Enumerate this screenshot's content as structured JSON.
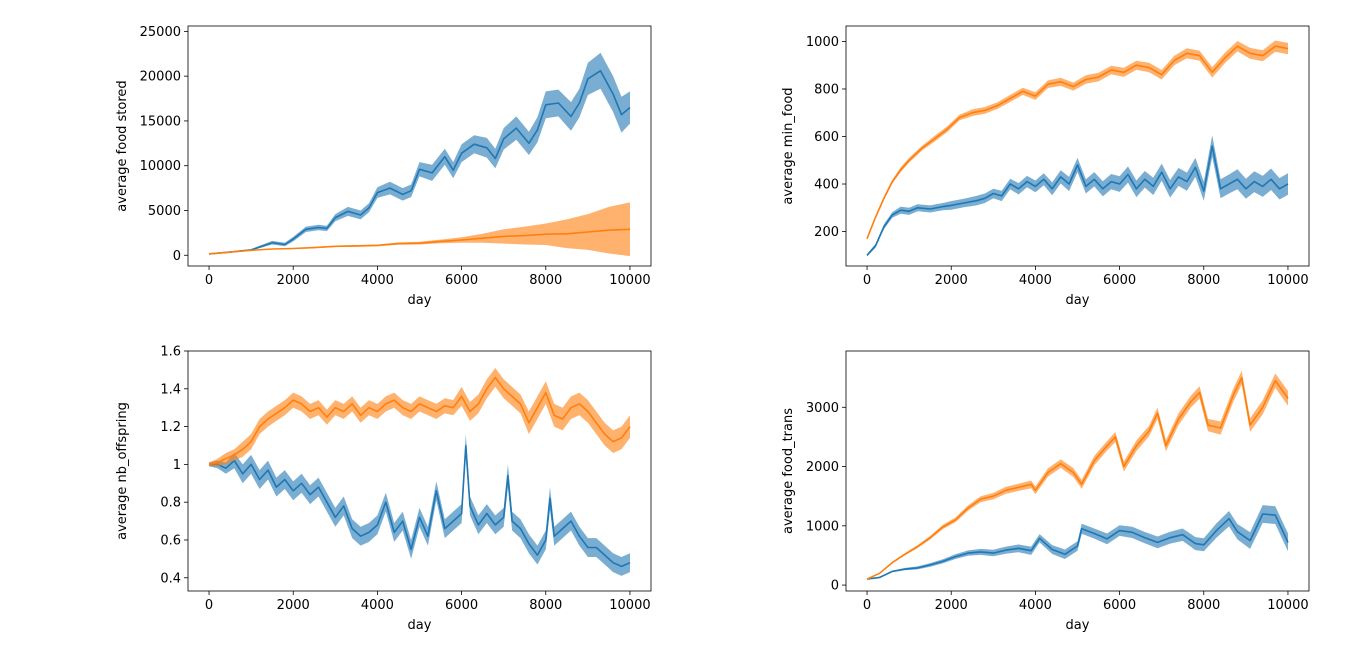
{
  "colors": {
    "series_a": "#1f77b4",
    "series_b": "#ff7f0e"
  },
  "chart_data": [
    {
      "type": "line",
      "title": "",
      "xlabel": "day",
      "ylabel": "average food stored",
      "xlim": [
        -500,
        10500
      ],
      "ylim": [
        -1200,
        25600
      ],
      "xticks": [
        0,
        2000,
        4000,
        6000,
        8000,
        10000
      ],
      "yticks": [
        0,
        5000,
        10000,
        15000,
        20000,
        25000
      ],
      "series": [
        {
          "color": "#1f77b4",
          "x": [
            0,
            500,
            1000,
            1500,
            1800,
            2000,
            2300,
            2600,
            2800,
            3000,
            3300,
            3600,
            3800,
            4000,
            4300,
            4600,
            4800,
            5000,
            5300,
            5600,
            5800,
            6000,
            6300,
            6600,
            6800,
            7000,
            7300,
            7600,
            7800,
            8000,
            8300,
            8600,
            8800,
            9000,
            9300,
            9600,
            9800,
            10000
          ],
          "y": [
            150,
            350,
            600,
            1400,
            1200,
            1800,
            2900,
            3100,
            3000,
            4200,
            4900,
            4500,
            5300,
            7000,
            7500,
            6800,
            7200,
            9600,
            9200,
            11000,
            9500,
            11400,
            12400,
            12000,
            10800,
            13000,
            14200,
            12500,
            14000,
            16800,
            17000,
            15500,
            17000,
            19700,
            20600,
            18000,
            15700,
            16500
          ],
          "band": [
            50,
            80,
            100,
            200,
            200,
            250,
            300,
            300,
            300,
            400,
            500,
            500,
            500,
            600,
            700,
            700,
            700,
            800,
            900,
            900,
            900,
            1000,
            1000,
            1100,
            1100,
            1200,
            1300,
            1300,
            1400,
            1500,
            1500,
            1600,
            1600,
            1800,
            2000,
            2000,
            2000,
            1800
          ]
        },
        {
          "color": "#ff7f0e",
          "x": [
            0,
            500,
            1000,
            1500,
            2000,
            2500,
            3000,
            3500,
            4000,
            4500,
            5000,
            5500,
            6000,
            6500,
            7000,
            7500,
            8000,
            8500,
            9000,
            9500,
            10000
          ],
          "y": [
            150,
            350,
            550,
            700,
            750,
            850,
            1000,
            1050,
            1100,
            1300,
            1350,
            1550,
            1700,
            1900,
            2100,
            2200,
            2350,
            2400,
            2600,
            2800,
            2900
          ],
          "band": [
            20,
            30,
            40,
            50,
            60,
            70,
            80,
            90,
            100,
            120,
            150,
            200,
            300,
            500,
            800,
            1000,
            1200,
            1600,
            2000,
            2600,
            3000
          ]
        }
      ]
    },
    {
      "type": "line",
      "title": "",
      "xlabel": "day",
      "ylabel": "average min_food",
      "xlim": [
        -500,
        10500
      ],
      "ylim": [
        55,
        1065
      ],
      "xticks": [
        0,
        2000,
        4000,
        6000,
        8000,
        10000
      ],
      "yticks": [
        200,
        400,
        600,
        800,
        1000
      ],
      "series": [
        {
          "color": "#1f77b4",
          "x": [
            0,
            200,
            400,
            600,
            800,
            1000,
            1200,
            1500,
            1800,
            2000,
            2300,
            2600,
            2800,
            3000,
            3200,
            3400,
            3600,
            3800,
            4000,
            4200,
            4400,
            4600,
            4800,
            5000,
            5200,
            5400,
            5600,
            5800,
            6000,
            6200,
            6400,
            6600,
            6800,
            7000,
            7200,
            7400,
            7600,
            7800,
            8000,
            8200,
            8400,
            8600,
            8800,
            9000,
            9200,
            9400,
            9600,
            9800,
            10000
          ],
          "y": [
            100,
            140,
            220,
            270,
            290,
            285,
            300,
            295,
            305,
            310,
            320,
            330,
            340,
            360,
            350,
            400,
            380,
            410,
            390,
            420,
            380,
            430,
            400,
            480,
            390,
            420,
            380,
            410,
            400,
            440,
            380,
            420,
            390,
            450,
            380,
            430,
            410,
            470,
            370,
            560,
            380,
            400,
            420,
            380,
            410,
            390,
            420,
            380,
            400
          ],
          "band": [
            5,
            8,
            10,
            12,
            15,
            15,
            15,
            15,
            15,
            18,
            18,
            20,
            20,
            20,
            22,
            22,
            24,
            24,
            25,
            25,
            27,
            28,
            30,
            30,
            30,
            30,
            32,
            32,
            33,
            34,
            35,
            35,
            36,
            36,
            37,
            38,
            38,
            40,
            40,
            45,
            40,
            40,
            42,
            42,
            44,
            44,
            45,
            45,
            45
          ]
        },
        {
          "color": "#ff7f0e",
          "x": [
            0,
            200,
            400,
            600,
            800,
            1000,
            1300,
            1600,
            1900,
            2200,
            2500,
            2800,
            3100,
            3400,
            3700,
            4000,
            4300,
            4600,
            4900,
            5200,
            5500,
            5800,
            6100,
            6400,
            6700,
            7000,
            7300,
            7600,
            7900,
            8200,
            8500,
            8800,
            9100,
            9400,
            9700,
            10000
          ],
          "y": [
            170,
            260,
            340,
            410,
            460,
            500,
            550,
            590,
            630,
            680,
            700,
            710,
            730,
            760,
            790,
            770,
            820,
            830,
            810,
            840,
            850,
            880,
            870,
            900,
            890,
            860,
            920,
            950,
            940,
            870,
            930,
            980,
            950,
            940,
            980,
            970
          ],
          "band": [
            5,
            6,
            8,
            8,
            10,
            10,
            10,
            12,
            12,
            12,
            14,
            14,
            14,
            15,
            15,
            16,
            16,
            17,
            17,
            18,
            18,
            18,
            19,
            19,
            20,
            20,
            20,
            21,
            21,
            22,
            22,
            22,
            23,
            23,
            24,
            24
          ]
        }
      ]
    },
    {
      "type": "line",
      "title": "",
      "xlabel": "day",
      "ylabel": "average nb_offspring",
      "xlim": [
        -500,
        10500
      ],
      "ylim": [
        0.33,
        1.6
      ],
      "xticks": [
        0,
        2000,
        4000,
        6000,
        8000,
        10000
      ],
      "yticks": [
        0.4,
        0.6,
        0.8,
        1.0,
        1.2,
        1.4,
        1.6
      ],
      "series": [
        {
          "color": "#1f77b4",
          "x": [
            0,
            200,
            400,
            600,
            800,
            1000,
            1200,
            1400,
            1600,
            1800,
            2000,
            2200,
            2400,
            2600,
            2800,
            3000,
            3200,
            3400,
            3600,
            3800,
            4000,
            4200,
            4400,
            4600,
            4800,
            5000,
            5200,
            5400,
            5600,
            5800,
            6000,
            6100,
            6200,
            6400,
            6600,
            6800,
            7000,
            7100,
            7200,
            7400,
            7600,
            7800,
            8000,
            8100,
            8200,
            8400,
            8600,
            8800,
            9000,
            9200,
            9400,
            9600,
            9800,
            10000
          ],
          "y": [
            1.0,
            1.0,
            0.98,
            1.02,
            0.95,
            1.0,
            0.92,
            0.97,
            0.88,
            0.92,
            0.86,
            0.9,
            0.84,
            0.88,
            0.8,
            0.72,
            0.78,
            0.66,
            0.62,
            0.64,
            0.68,
            0.8,
            0.64,
            0.7,
            0.55,
            0.72,
            0.62,
            0.86,
            0.66,
            0.7,
            0.74,
            1.1,
            0.78,
            0.68,
            0.74,
            0.68,
            0.72,
            0.94,
            0.7,
            0.66,
            0.58,
            0.52,
            0.6,
            0.82,
            0.62,
            0.66,
            0.7,
            0.62,
            0.56,
            0.56,
            0.52,
            0.48,
            0.46,
            0.48
          ],
          "band": [
            0.01,
            0.02,
            0.03,
            0.04,
            0.05,
            0.05,
            0.05,
            0.05,
            0.05,
            0.05,
            0.05,
            0.05,
            0.05,
            0.05,
            0.05,
            0.05,
            0.05,
            0.05,
            0.05,
            0.05,
            0.05,
            0.05,
            0.05,
            0.05,
            0.05,
            0.05,
            0.05,
            0.05,
            0.05,
            0.05,
            0.05,
            0.06,
            0.05,
            0.05,
            0.05,
            0.05,
            0.05,
            0.06,
            0.05,
            0.05,
            0.05,
            0.05,
            0.05,
            0.06,
            0.05,
            0.05,
            0.05,
            0.05,
            0.05,
            0.05,
            0.05,
            0.05,
            0.05,
            0.05
          ]
        },
        {
          "color": "#ff7f0e",
          "x": [
            0,
            200,
            400,
            600,
            800,
            1000,
            1200,
            1400,
            1600,
            1800,
            2000,
            2200,
            2400,
            2600,
            2800,
            3000,
            3200,
            3400,
            3600,
            3800,
            4000,
            4200,
            4400,
            4600,
            4800,
            5000,
            5200,
            5400,
            5600,
            5800,
            6000,
            6200,
            6400,
            6600,
            6800,
            7000,
            7200,
            7400,
            7600,
            7800,
            8000,
            8200,
            8400,
            8600,
            8800,
            9000,
            9200,
            9400,
            9600,
            9800,
            10000
          ],
          "y": [
            1.0,
            1.01,
            1.03,
            1.05,
            1.08,
            1.12,
            1.2,
            1.24,
            1.27,
            1.3,
            1.34,
            1.32,
            1.28,
            1.3,
            1.25,
            1.3,
            1.28,
            1.32,
            1.26,
            1.3,
            1.28,
            1.32,
            1.34,
            1.3,
            1.28,
            1.32,
            1.3,
            1.28,
            1.31,
            1.3,
            1.36,
            1.28,
            1.32,
            1.4,
            1.46,
            1.4,
            1.36,
            1.32,
            1.22,
            1.3,
            1.38,
            1.26,
            1.24,
            1.3,
            1.32,
            1.28,
            1.22,
            1.16,
            1.12,
            1.14,
            1.2
          ],
          "band": [
            0.01,
            0.02,
            0.03,
            0.03,
            0.04,
            0.04,
            0.04,
            0.04,
            0.04,
            0.04,
            0.04,
            0.04,
            0.04,
            0.04,
            0.04,
            0.04,
            0.04,
            0.04,
            0.04,
            0.04,
            0.04,
            0.04,
            0.04,
            0.04,
            0.04,
            0.04,
            0.04,
            0.04,
            0.04,
            0.04,
            0.05,
            0.05,
            0.05,
            0.05,
            0.05,
            0.05,
            0.05,
            0.05,
            0.06,
            0.06,
            0.06,
            0.06,
            0.06,
            0.06,
            0.06,
            0.06,
            0.06,
            0.06,
            0.06,
            0.06,
            0.06
          ]
        }
      ]
    },
    {
      "type": "line",
      "title": "",
      "xlabel": "day",
      "ylabel": "average food_trans",
      "xlim": [
        -500,
        10500
      ],
      "ylim": [
        -100,
        3950
      ],
      "xticks": [
        0,
        2000,
        4000,
        6000,
        8000,
        10000
      ],
      "yticks": [
        0,
        1000,
        2000,
        3000
      ],
      "series": [
        {
          "color": "#1f77b4",
          "x": [
            0,
            300,
            600,
            900,
            1200,
            1500,
            1800,
            2100,
            2400,
            2700,
            3000,
            3300,
            3600,
            3900,
            4100,
            4400,
            4700,
            5000,
            5100,
            5400,
            5700,
            6000,
            6300,
            6600,
            6900,
            7200,
            7500,
            7800,
            8000,
            8300,
            8600,
            8800,
            9100,
            9400,
            9700,
            10000
          ],
          "y": [
            100,
            130,
            230,
            270,
            290,
            340,
            400,
            480,
            540,
            560,
            540,
            590,
            620,
            580,
            790,
            600,
            520,
            660,
            950,
            870,
            780,
            920,
            890,
            800,
            720,
            800,
            850,
            700,
            680,
            920,
            1120,
            900,
            750,
            1200,
            1180,
            720
          ],
          "band": [
            5,
            10,
            15,
            20,
            25,
            30,
            35,
            40,
            45,
            50,
            55,
            60,
            65,
            70,
            70,
            75,
            80,
            80,
            85,
            85,
            90,
            90,
            95,
            95,
            100,
            100,
            105,
            110,
            110,
            120,
            130,
            130,
            140,
            150,
            150,
            150
          ]
        },
        {
          "color": "#ff7f0e",
          "x": [
            0,
            300,
            600,
            900,
            1200,
            1500,
            1800,
            2100,
            2400,
            2700,
            3000,
            3300,
            3600,
            3900,
            4000,
            4300,
            4600,
            4900,
            5100,
            5400,
            5700,
            5900,
            6100,
            6400,
            6700,
            6900,
            7100,
            7400,
            7700,
            7900,
            8100,
            8400,
            8700,
            8900,
            9100,
            9400,
            9700,
            10000
          ],
          "y": [
            100,
            200,
            380,
            520,
            650,
            800,
            980,
            1100,
            1300,
            1450,
            1500,
            1600,
            1650,
            1700,
            1600,
            1900,
            2050,
            1900,
            1700,
            2100,
            2350,
            2500,
            2000,
            2350,
            2600,
            2900,
            2350,
            2800,
            3100,
            3250,
            2700,
            2650,
            3200,
            3500,
            2700,
            3000,
            3450,
            3150
          ],
          "band": [
            5,
            10,
            15,
            20,
            25,
            30,
            35,
            40,
            45,
            50,
            55,
            60,
            60,
            65,
            65,
            70,
            70,
            75,
            75,
            80,
            80,
            85,
            85,
            90,
            90,
            95,
            95,
            100,
            100,
            105,
            105,
            110,
            110,
            115,
            115,
            120,
            120,
            125
          ]
        }
      ]
    }
  ]
}
